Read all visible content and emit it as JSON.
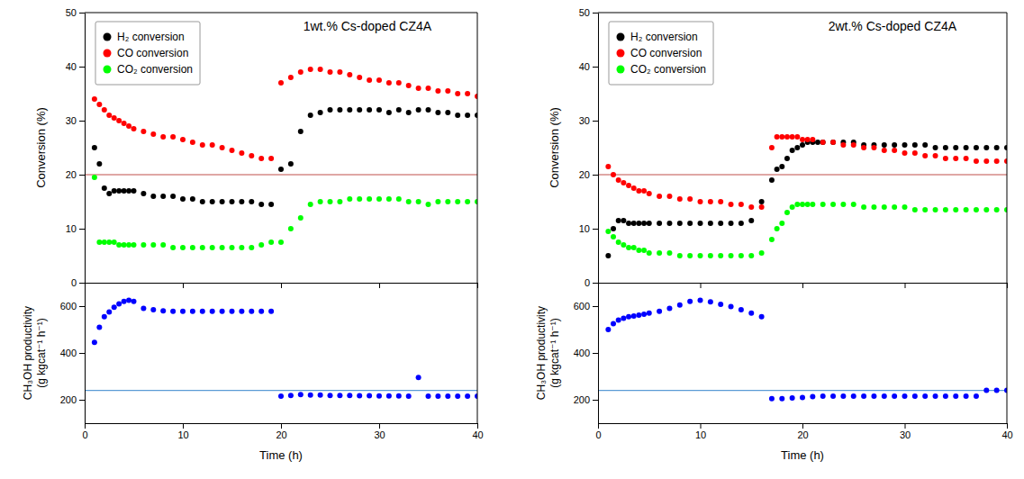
{
  "chart_data": [
    {
      "type": "scatter",
      "title": "1wt.% Cs-doped CZ4A",
      "ylabel": "Conversion (%)",
      "xlim": [
        0,
        40
      ],
      "ylim": [
        0,
        50
      ],
      "xticks": [
        0,
        10,
        20,
        30,
        40
      ],
      "yticks": [
        0,
        10,
        20,
        30,
        40,
        50
      ],
      "tick_labels": "y",
      "grid": false,
      "legend": "upper left",
      "reference_line": {
        "value": 20,
        "color": "#c0504d"
      },
      "series": [
        {
          "name": "H₂ conversion",
          "color": "black",
          "x": [
            1.0,
            1.5,
            2.0,
            2.5,
            3.0,
            3.5,
            4.0,
            4.5,
            5.0,
            6.0,
            7.0,
            8.0,
            9.0,
            10.0,
            11.0,
            12.0,
            13.0,
            14.0,
            15.0,
            16.0,
            17.0,
            18.0,
            19.0,
            20.0,
            21.0,
            22.0,
            23.0,
            24.0,
            25.0,
            26.0,
            27.0,
            28.0,
            29.0,
            30.0,
            31.0,
            32.0,
            33.0,
            34.0,
            35.0,
            36.0,
            37.0,
            38.0,
            39.0,
            40.0
          ],
          "values": [
            25.0,
            22.0,
            17.5,
            16.5,
            17.0,
            17.0,
            17.0,
            17.0,
            17.0,
            16.5,
            16.0,
            16.0,
            16.0,
            15.5,
            15.5,
            15.0,
            15.0,
            15.0,
            15.0,
            15.0,
            15.0,
            14.5,
            14.5,
            21.0,
            22.0,
            28.0,
            31.0,
            31.5,
            32.0,
            32.0,
            32.0,
            32.0,
            32.0,
            32.0,
            31.5,
            32.0,
            31.5,
            32.0,
            32.0,
            31.5,
            31.5,
            31.0,
            31.0,
            31.0
          ]
        },
        {
          "name": "CO conversion",
          "color": "red",
          "x": [
            1.0,
            1.5,
            2.0,
            2.5,
            3.0,
            3.5,
            4.0,
            4.5,
            5.0,
            6.0,
            7.0,
            8.0,
            9.0,
            10.0,
            11.0,
            12.0,
            13.0,
            14.0,
            15.0,
            16.0,
            17.0,
            18.0,
            19.0,
            20.0,
            21.0,
            22.0,
            23.0,
            24.0,
            25.0,
            26.0,
            27.0,
            28.0,
            29.0,
            30.0,
            31.0,
            32.0,
            33.0,
            34.0,
            35.0,
            36.0,
            37.0,
            38.0,
            39.0,
            40.0
          ],
          "values": [
            34.0,
            33.0,
            32.0,
            31.0,
            30.5,
            30.0,
            29.5,
            29.0,
            28.5,
            28.0,
            27.5,
            27.0,
            27.0,
            26.5,
            26.0,
            25.5,
            25.5,
            25.0,
            24.5,
            24.0,
            23.5,
            23.0,
            23.0,
            37.0,
            38.0,
            39.0,
            39.5,
            39.5,
            39.0,
            39.0,
            38.5,
            38.0,
            37.5,
            37.5,
            37.0,
            37.0,
            36.5,
            36.0,
            36.0,
            35.5,
            35.5,
            35.0,
            35.0,
            34.5
          ]
        },
        {
          "name": "CO₂ conversion",
          "color": "lime",
          "x": [
            1.0,
            1.5,
            2.0,
            2.5,
            3.0,
            3.5,
            4.0,
            4.5,
            5.0,
            6.0,
            7.0,
            8.0,
            9.0,
            10.0,
            11.0,
            12.0,
            13.0,
            14.0,
            15.0,
            16.0,
            17.0,
            18.0,
            19.0,
            20.0,
            21.0,
            22.0,
            23.0,
            24.0,
            25.0,
            26.0,
            27.0,
            28.0,
            29.0,
            30.0,
            31.0,
            32.0,
            33.0,
            34.0,
            35.0,
            36.0,
            37.0,
            38.0,
            39.0,
            40.0
          ],
          "values": [
            19.5,
            7.5,
            7.5,
            7.5,
            7.5,
            7.0,
            7.0,
            7.0,
            7.0,
            7.0,
            7.0,
            7.0,
            6.5,
            6.5,
            6.5,
            6.5,
            6.5,
            6.5,
            6.5,
            6.5,
            6.5,
            7.0,
            7.5,
            7.5,
            10.0,
            12.0,
            14.5,
            15.0,
            15.0,
            15.0,
            15.5,
            15.5,
            15.5,
            15.5,
            15.5,
            15.5,
            15.0,
            15.0,
            14.5,
            15.0,
            15.0,
            15.0,
            15.0,
            15.0
          ]
        }
      ]
    },
    {
      "type": "scatter",
      "xlabel": "Time (h)",
      "ylabel": [
        "CH₃OH productivity",
        "(g kgcat⁻¹ h⁻¹)"
      ],
      "xlim": [
        0,
        40
      ],
      "ylim": [
        100,
        700
      ],
      "xticks": [
        0,
        10,
        20,
        30,
        40
      ],
      "yticks": [
        200,
        400,
        600
      ],
      "grid": false,
      "reference_line": {
        "value": 240,
        "color": "#5b9bd5"
      },
      "color": "blue",
      "x": [
        1.0,
        1.5,
        2.0,
        2.5,
        3.0,
        3.5,
        4.0,
        4.5,
        5.0,
        6.0,
        7.0,
        8.0,
        9.0,
        10.0,
        11.0,
        12.0,
        13.0,
        14.0,
        15.0,
        16.0,
        17.0,
        18.0,
        19.0,
        20.0,
        21.0,
        22.0,
        23.0,
        24.0,
        25.0,
        26.0,
        27.0,
        28.0,
        29.0,
        30.0,
        31.0,
        32.0,
        33.0,
        34.0,
        35.0,
        36.0,
        37.0,
        38.0,
        39.0,
        40.0
      ],
      "values": [
        445,
        510,
        555,
        575,
        595,
        610,
        620,
        625,
        620,
        590,
        585,
        580,
        578,
        578,
        578,
        578,
        578,
        578,
        578,
        578,
        578,
        578,
        578,
        215,
        218,
        222,
        220,
        220,
        218,
        218,
        218,
        217,
        217,
        216,
        216,
        216,
        215,
        295,
        215,
        215,
        215,
        215,
        215,
        215
      ]
    },
    {
      "type": "scatter",
      "title": "2wt.% Cs-doped CZ4A",
      "ylabel": "Conversion (%)",
      "xlim": [
        0,
        40
      ],
      "ylim": [
        0,
        50
      ],
      "xticks": [
        0,
        10,
        20,
        30,
        40
      ],
      "yticks": [
        0,
        10,
        20,
        30,
        40,
        50
      ],
      "tick_labels": "y",
      "grid": false,
      "legend": "upper left",
      "reference_line": {
        "value": 20,
        "color": "#c0504d"
      },
      "series": [
        {
          "name": "H₂ conversion",
          "color": "black",
          "x": [
            1.0,
            1.5,
            2.0,
            2.5,
            3.0,
            3.5,
            4.0,
            4.5,
            5.0,
            6.0,
            7.0,
            8.0,
            9.0,
            10.0,
            11.0,
            12.0,
            13.0,
            14.0,
            15.0,
            16.0,
            17.0,
            17.5,
            18.0,
            18.5,
            19.0,
            19.5,
            20.0,
            20.5,
            21.0,
            21.5,
            22.0,
            23.0,
            24.0,
            25.0,
            26.0,
            27.0,
            28.0,
            29.0,
            30.0,
            31.0,
            32.0,
            33.0,
            34.0,
            35.0,
            36.0,
            37.0,
            38.0,
            39.0,
            40.0
          ],
          "values": [
            5.0,
            10.0,
            11.5,
            11.5,
            11.0,
            11.0,
            11.0,
            11.0,
            11.0,
            11.0,
            11.0,
            11.0,
            11.0,
            11.0,
            11.0,
            11.0,
            11.0,
            11.0,
            11.5,
            15.0,
            19.0,
            21.0,
            21.5,
            23.0,
            24.5,
            25.0,
            25.5,
            26.0,
            26.0,
            26.0,
            26.0,
            26.0,
            26.0,
            26.0,
            25.5,
            25.5,
            25.5,
            25.5,
            25.5,
            25.5,
            25.5,
            25.0,
            25.0,
            25.0,
            25.0,
            25.0,
            25.0,
            25.0,
            25.0
          ]
        },
        {
          "name": "CO conversion",
          "color": "red",
          "x": [
            1.0,
            1.5,
            2.0,
            2.5,
            3.0,
            3.5,
            4.0,
            4.5,
            5.0,
            6.0,
            7.0,
            8.0,
            9.0,
            10.0,
            11.0,
            12.0,
            13.0,
            14.0,
            15.0,
            16.0,
            17.0,
            17.5,
            18.0,
            18.5,
            19.0,
            19.5,
            20.0,
            20.5,
            21.0,
            22.0,
            23.0,
            24.0,
            25.0,
            26.0,
            27.0,
            28.0,
            29.0,
            30.0,
            31.0,
            32.0,
            33.0,
            34.0,
            35.0,
            36.0,
            37.0,
            38.0,
            39.0,
            40.0
          ],
          "values": [
            21.5,
            20.0,
            19.0,
            18.5,
            18.0,
            17.5,
            17.0,
            17.0,
            16.5,
            16.0,
            16.0,
            15.5,
            15.5,
            15.0,
            15.0,
            15.0,
            14.5,
            14.5,
            14.0,
            14.0,
            25.0,
            27.0,
            27.0,
            27.0,
            27.0,
            27.0,
            26.5,
            26.5,
            26.5,
            26.0,
            26.0,
            25.5,
            25.5,
            25.0,
            25.0,
            24.5,
            24.5,
            24.0,
            24.0,
            23.5,
            23.5,
            23.0,
            23.0,
            23.0,
            22.5,
            22.5,
            22.5,
            22.5
          ]
        },
        {
          "name": "CO₂ conversion",
          "color": "lime",
          "x": [
            1.0,
            1.5,
            2.0,
            2.5,
            3.0,
            3.5,
            4.0,
            4.5,
            5.0,
            6.0,
            7.0,
            8.0,
            9.0,
            10.0,
            11.0,
            12.0,
            13.0,
            14.0,
            15.0,
            16.0,
            17.0,
            17.5,
            18.0,
            18.5,
            19.0,
            19.5,
            20.0,
            20.5,
            21.0,
            22.0,
            23.0,
            24.0,
            25.0,
            26.0,
            27.0,
            28.0,
            29.0,
            30.0,
            31.0,
            32.0,
            33.0,
            34.0,
            35.0,
            36.0,
            37.0,
            38.0,
            39.0,
            40.0
          ],
          "values": [
            9.5,
            8.5,
            7.5,
            7.0,
            6.5,
            6.5,
            6.0,
            6.0,
            5.5,
            5.5,
            5.5,
            5.0,
            5.0,
            5.0,
            5.0,
            5.0,
            5.0,
            5.0,
            5.0,
            5.5,
            8.0,
            10.0,
            11.0,
            13.0,
            14.0,
            14.5,
            14.5,
            14.5,
            14.5,
            14.5,
            14.5,
            14.5,
            14.5,
            14.0,
            14.0,
            14.0,
            14.0,
            14.0,
            13.5,
            13.5,
            13.5,
            13.5,
            13.5,
            13.5,
            13.5,
            13.5,
            13.5,
            13.5
          ]
        }
      ]
    },
    {
      "type": "scatter",
      "xlabel": "Time (h)",
      "ylabel": [
        "CH₃OH productivity",
        "(g kgcat⁻¹ h⁻¹)"
      ],
      "xlim": [
        0,
        40
      ],
      "ylim": [
        100,
        700
      ],
      "xticks": [
        0,
        10,
        20,
        30,
        40
      ],
      "yticks": [
        200,
        400,
        600
      ],
      "grid": false,
      "reference_line": {
        "value": 240,
        "color": "#5b9bd5"
      },
      "color": "blue",
      "x": [
        1.0,
        1.5,
        2.0,
        2.5,
        3.0,
        3.5,
        4.0,
        4.5,
        5.0,
        6.0,
        7.0,
        8.0,
        9.0,
        10.0,
        11.0,
        12.0,
        13.0,
        14.0,
        15.0,
        16.0,
        17.0,
        18.0,
        19.0,
        20.0,
        21.0,
        22.0,
        23.0,
        24.0,
        25.0,
        26.0,
        27.0,
        28.0,
        29.0,
        30.0,
        31.0,
        32.0,
        33.0,
        34.0,
        35.0,
        36.0,
        37.0,
        38.0,
        39.0,
        40.0
      ],
      "values": [
        500,
        525,
        540,
        548,
        555,
        558,
        562,
        565,
        570,
        578,
        590,
        605,
        620,
        625,
        618,
        608,
        598,
        585,
        570,
        555,
        205,
        205,
        208,
        210,
        213,
        215,
        215,
        215,
        215,
        215,
        215,
        215,
        215,
        215,
        215,
        215,
        215,
        215,
        215,
        215,
        215,
        240,
        240,
        240
      ]
    }
  ]
}
